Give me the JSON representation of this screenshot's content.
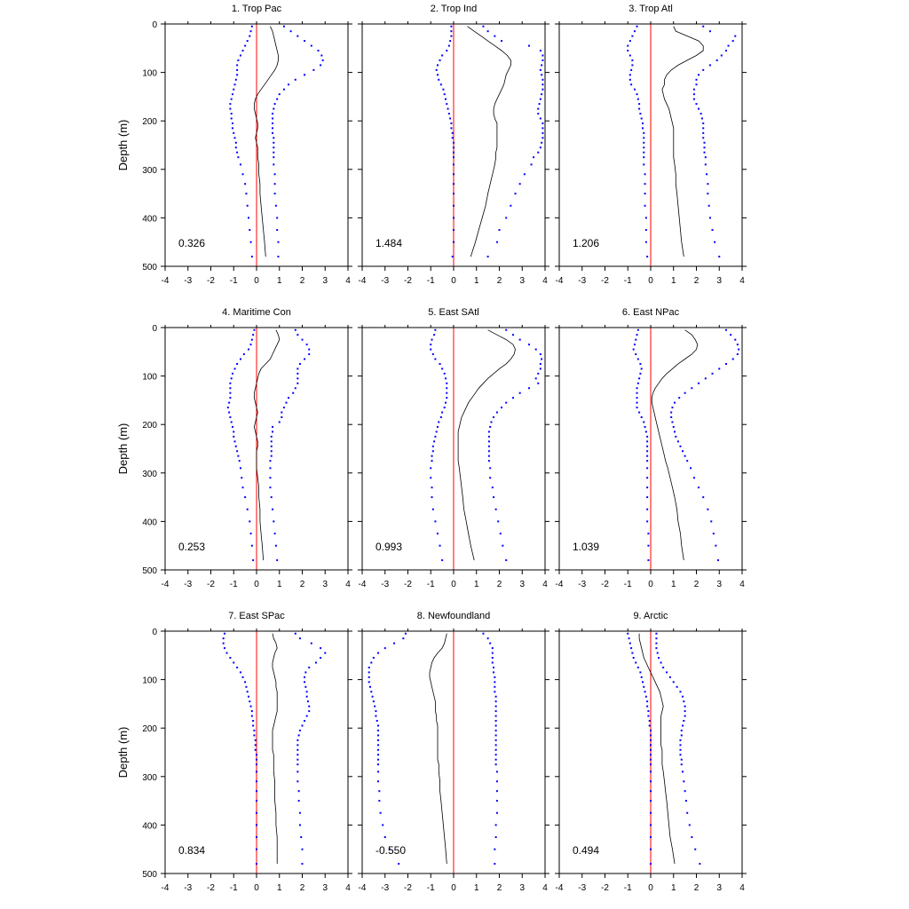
{
  "colors": {
    "mean_line": "#000000",
    "spread_dots": "#0000ff",
    "zero_line": "#ff0000",
    "axes": "#000000"
  },
  "chart_data": {
    "type": "line",
    "xlim": [
      -4,
      4
    ],
    "ylim": [
      0,
      500
    ],
    "y_inverted": true,
    "xticks": [
      "-4",
      "-3",
      "-2",
      "-1",
      "0",
      "1",
      "2",
      "3",
      "4"
    ],
    "yticks": [
      "0",
      "100",
      "200",
      "300",
      "400",
      "500"
    ],
    "ylabel": "Depth (m)",
    "grid": false,
    "depths": [
      5,
      15,
      25,
      35,
      45,
      55,
      65,
      75,
      85,
      95,
      105,
      115,
      125,
      135,
      145,
      155,
      165,
      175,
      185,
      195,
      205,
      215,
      225,
      235,
      245,
      255,
      265,
      275,
      290,
      310,
      330,
      350,
      375,
      400,
      425,
      450,
      480
    ],
    "panels": [
      {
        "title": "1. Trop Pac",
        "value": "0.326",
        "mean": [
          0.6,
          0.7,
          0.75,
          0.8,
          0.85,
          0.9,
          0.95,
          0.95,
          0.9,
          0.8,
          0.65,
          0.5,
          0.35,
          0.2,
          0.05,
          -0.05,
          -0.1,
          -0.1,
          -0.05,
          0.0,
          0.05,
          0.05,
          0.0,
          -0.05,
          0.0,
          0.05,
          0.05,
          0.05,
          0.1,
          0.1,
          0.15,
          0.15,
          0.2,
          0.25,
          0.3,
          0.35,
          0.4
        ],
        "lower": [
          -0.2,
          -0.25,
          -0.3,
          -0.4,
          -0.5,
          -0.6,
          -0.7,
          -0.8,
          -0.85,
          -0.85,
          -0.85,
          -0.9,
          -0.95,
          -1.0,
          -1.05,
          -1.1,
          -1.15,
          -1.15,
          -1.1,
          -1.1,
          -1.05,
          -1.05,
          -1.0,
          -0.95,
          -0.9,
          -0.9,
          -0.85,
          -0.8,
          -0.7,
          -0.6,
          -0.5,
          -0.45,
          -0.4,
          -0.35,
          -0.3,
          -0.25,
          -0.2
        ],
        "upper": [
          1.2,
          1.5,
          1.8,
          2.1,
          2.4,
          2.7,
          2.85,
          2.9,
          2.8,
          2.5,
          2.1,
          1.7,
          1.4,
          1.2,
          1.0,
          0.9,
          0.8,
          0.75,
          0.7,
          0.7,
          0.7,
          0.7,
          0.7,
          0.75,
          0.75,
          0.75,
          0.75,
          0.75,
          0.75,
          0.8,
          0.8,
          0.8,
          0.85,
          0.9,
          0.9,
          0.95,
          0.95
        ]
      },
      {
        "title": "2. Trop Ind",
        "value": "1.484",
        "mean": [
          0.6,
          0.9,
          1.2,
          1.5,
          1.8,
          2.1,
          2.35,
          2.5,
          2.5,
          2.4,
          2.3,
          2.25,
          2.2,
          2.1,
          2.0,
          1.9,
          1.8,
          1.75,
          1.75,
          1.8,
          1.9,
          1.9,
          1.9,
          1.9,
          1.9,
          1.9,
          1.85,
          1.85,
          1.8,
          1.7,
          1.6,
          1.5,
          1.4,
          1.25,
          1.1,
          0.95,
          0.75
        ],
        "lower": [
          -0.1,
          -0.1,
          -0.1,
          -0.15,
          -0.2,
          -0.3,
          -0.5,
          -0.6,
          -0.7,
          -0.75,
          -0.7,
          -0.65,
          -0.55,
          -0.45,
          -0.4,
          -0.35,
          -0.3,
          -0.25,
          -0.2,
          -0.15,
          -0.1,
          -0.1,
          -0.05,
          -0.05,
          0.0,
          0.0,
          0.0,
          0.0,
          0.0,
          0.0,
          0.0,
          0.0,
          0.0,
          0.0,
          0.0,
          0.0,
          -0.05
        ],
        "upper": [
          1.3,
          1.5,
          1.8,
          2.1,
          3.3,
          3.8,
          3.9,
          3.9,
          3.85,
          3.8,
          3.85,
          3.9,
          3.9,
          3.9,
          3.85,
          3.8,
          3.75,
          3.7,
          3.7,
          3.8,
          3.9,
          3.9,
          3.9,
          3.9,
          3.85,
          3.8,
          3.7,
          3.5,
          3.4,
          3.1,
          2.9,
          2.7,
          2.5,
          2.3,
          2.0,
          1.9,
          1.5
        ]
      },
      {
        "title": "3. Trop Atl",
        "value": "1.206",
        "mean": [
          1.0,
          1.1,
          1.6,
          2.1,
          2.3,
          2.3,
          2.0,
          1.6,
          1.2,
          0.9,
          0.7,
          0.6,
          0.6,
          0.5,
          0.55,
          0.6,
          0.7,
          0.8,
          0.85,
          0.9,
          0.95,
          1.0,
          1.0,
          1.0,
          1.0,
          1.0,
          1.0,
          1.0,
          1.05,
          1.1,
          1.1,
          1.15,
          1.2,
          1.25,
          1.3,
          1.35,
          1.45
        ],
        "lower": [
          -0.6,
          -0.7,
          -0.8,
          -0.9,
          -1.0,
          -1.0,
          -0.9,
          -0.8,
          -0.8,
          -0.85,
          -0.9,
          -0.9,
          -0.85,
          -0.7,
          -0.6,
          -0.55,
          -0.5,
          -0.5,
          -0.45,
          -0.4,
          -0.35,
          -0.35,
          -0.3,
          -0.3,
          -0.3,
          -0.3,
          -0.3,
          -0.3,
          -0.3,
          -0.25,
          -0.25,
          -0.25,
          -0.25,
          -0.2,
          -0.2,
          -0.2,
          -0.15
        ],
        "upper": [
          2.3,
          2.6,
          3.7,
          3.6,
          3.4,
          3.3,
          3.1,
          2.9,
          2.6,
          2.3,
          2.1,
          2.0,
          2.0,
          1.9,
          1.9,
          1.9,
          2.0,
          2.1,
          2.2,
          2.25,
          2.3,
          2.3,
          2.3,
          2.3,
          2.35,
          2.35,
          2.35,
          2.4,
          2.4,
          2.45,
          2.5,
          2.5,
          2.55,
          2.6,
          2.7,
          2.8,
          3.0
        ]
      },
      {
        "title": "4. Maritime Con",
        "value": "0.253",
        "mean": [
          0.85,
          0.95,
          1.0,
          0.9,
          0.8,
          0.7,
          0.6,
          0.4,
          0.2,
          0.1,
          0.05,
          0.0,
          -0.05,
          -0.1,
          -0.1,
          -0.05,
          0.0,
          0.05,
          0.0,
          -0.05,
          -0.1,
          -0.05,
          0.0,
          0.05,
          0.05,
          0.0,
          0.0,
          0.0,
          0.0,
          0.05,
          0.1,
          0.1,
          0.15,
          0.15,
          0.2,
          0.25,
          0.3
        ],
        "lower": [
          -0.1,
          -0.15,
          -0.2,
          -0.25,
          -0.35,
          -0.55,
          -0.7,
          -0.85,
          -0.95,
          -1.05,
          -1.1,
          -1.15,
          -1.15,
          -1.15,
          -1.15,
          -1.2,
          -1.25,
          -1.2,
          -1.15,
          -1.1,
          -1.05,
          -1.0,
          -1.0,
          -0.95,
          -0.9,
          -0.85,
          -0.8,
          -0.75,
          -0.7,
          -0.65,
          -0.6,
          -0.5,
          -0.4,
          -0.3,
          -0.25,
          -0.2,
          -0.15
        ],
        "upper": [
          1.7,
          1.8,
          2.0,
          2.2,
          2.3,
          2.3,
          2.1,
          1.9,
          1.8,
          1.8,
          1.8,
          1.8,
          1.7,
          1.6,
          1.4,
          1.3,
          1.2,
          1.1,
          1.1,
          1.0,
          0.7,
          0.7,
          0.65,
          0.65,
          0.65,
          0.65,
          0.65,
          0.6,
          0.6,
          0.6,
          0.6,
          0.65,
          0.7,
          0.75,
          0.8,
          0.85,
          0.9
        ]
      },
      {
        "title": "5. East SAtl",
        "value": "0.993",
        "mean": [
          1.5,
          1.9,
          2.3,
          2.6,
          2.7,
          2.65,
          2.5,
          2.3,
          2.0,
          1.75,
          1.5,
          1.3,
          1.1,
          0.95,
          0.8,
          0.65,
          0.55,
          0.45,
          0.35,
          0.3,
          0.25,
          0.2,
          0.2,
          0.2,
          0.2,
          0.2,
          0.2,
          0.2,
          0.25,
          0.3,
          0.35,
          0.4,
          0.45,
          0.55,
          0.65,
          0.75,
          0.9
        ],
        "lower": [
          -0.8,
          -0.85,
          -0.95,
          -1.0,
          -1.0,
          -0.9,
          -0.8,
          -0.6,
          -0.5,
          -0.4,
          -0.35,
          -0.3,
          -0.3,
          -0.3,
          -0.3,
          -0.35,
          -0.4,
          -0.5,
          -0.55,
          -0.65,
          -0.7,
          -0.75,
          -0.8,
          -0.85,
          -0.9,
          -0.9,
          -0.95,
          -0.95,
          -1.0,
          -1.0,
          -0.95,
          -0.95,
          -0.9,
          -0.8,
          -0.7,
          -0.6,
          -0.5
        ],
        "upper": [
          2.3,
          2.6,
          2.9,
          3.3,
          3.6,
          3.8,
          3.85,
          3.8,
          3.8,
          3.7,
          3.6,
          3.7,
          3.3,
          2.9,
          2.6,
          2.3,
          2.1,
          1.9,
          1.75,
          1.65,
          1.6,
          1.55,
          1.55,
          1.55,
          1.55,
          1.55,
          1.55,
          1.55,
          1.6,
          1.6,
          1.7,
          1.75,
          1.85,
          1.95,
          2.05,
          2.15,
          2.3
        ]
      },
      {
        "title": "6. East NPac",
        "value": "1.039",
        "mean": [
          1.5,
          1.8,
          1.95,
          2.05,
          2.0,
          1.8,
          1.5,
          1.2,
          0.95,
          0.7,
          0.5,
          0.35,
          0.2,
          0.1,
          0.05,
          0.05,
          0.1,
          0.15,
          0.2,
          0.25,
          0.3,
          0.35,
          0.4,
          0.45,
          0.5,
          0.55,
          0.6,
          0.65,
          0.75,
          0.85,
          0.95,
          1.05,
          1.15,
          1.2,
          1.3,
          1.35,
          1.45
        ],
        "lower": [
          -0.55,
          -0.6,
          -0.65,
          -0.7,
          -0.75,
          -0.65,
          -0.55,
          -0.45,
          -0.4,
          -0.45,
          -0.5,
          -0.55,
          -0.6,
          -0.6,
          -0.6,
          -0.6,
          -0.6,
          -0.5,
          -0.4,
          -0.3,
          -0.25,
          -0.2,
          -0.15,
          -0.15,
          -0.15,
          -0.15,
          -0.15,
          -0.15,
          -0.15,
          -0.15,
          -0.15,
          -0.15,
          -0.15,
          -0.15,
          -0.1,
          -0.1,
          -0.1
        ],
        "upper": [
          3.3,
          3.5,
          3.7,
          3.8,
          3.85,
          3.8,
          3.6,
          3.3,
          3.0,
          2.7,
          2.4,
          2.1,
          1.8,
          1.5,
          1.25,
          1.05,
          0.95,
          0.9,
          0.9,
          0.95,
          1.0,
          1.05,
          1.1,
          1.2,
          1.3,
          1.4,
          1.5,
          1.6,
          1.75,
          1.9,
          2.1,
          2.3,
          2.5,
          2.65,
          2.75,
          2.85,
          2.95
        ]
      },
      {
        "title": "7. East SPac",
        "value": "0.834",
        "mean": [
          0.7,
          0.75,
          0.85,
          0.9,
          0.8,
          0.75,
          0.7,
          0.7,
          0.75,
          0.8,
          0.85,
          0.85,
          0.9,
          0.9,
          0.9,
          0.9,
          0.9,
          0.85,
          0.8,
          0.75,
          0.7,
          0.7,
          0.7,
          0.7,
          0.7,
          0.75,
          0.75,
          0.75,
          0.75,
          0.8,
          0.8,
          0.8,
          0.85,
          0.85,
          0.9,
          0.9,
          0.9
        ],
        "lower": [
          -1.4,
          -1.45,
          -1.45,
          -1.4,
          -1.3,
          -1.15,
          -1.0,
          -0.85,
          -0.7,
          -0.6,
          -0.5,
          -0.45,
          -0.4,
          -0.35,
          -0.3,
          -0.25,
          -0.2,
          -0.2,
          -0.15,
          -0.15,
          -0.1,
          -0.1,
          -0.05,
          -0.05,
          -0.05,
          0.0,
          0.0,
          0.0,
          0.0,
          0.0,
          0.0,
          0.0,
          0.0,
          0.0,
          0.0,
          0.0,
          0.0
        ],
        "upper": [
          1.7,
          1.9,
          2.4,
          2.8,
          3.0,
          2.8,
          2.6,
          2.3,
          2.15,
          2.1,
          2.1,
          2.15,
          2.2,
          2.2,
          2.25,
          2.3,
          2.3,
          2.2,
          2.1,
          2.0,
          1.9,
          1.85,
          1.8,
          1.8,
          1.8,
          1.8,
          1.8,
          1.8,
          1.8,
          1.8,
          1.85,
          1.85,
          1.9,
          1.9,
          1.95,
          2.0,
          2.0
        ]
      },
      {
        "title": "8. Newfoundland",
        "value": "-0.550",
        "mean": [
          -0.3,
          -0.35,
          -0.4,
          -0.5,
          -0.7,
          -0.85,
          -0.95,
          -1.0,
          -1.05,
          -1.05,
          -1.0,
          -0.95,
          -0.9,
          -0.85,
          -0.8,
          -0.8,
          -0.8,
          -0.75,
          -0.75,
          -0.7,
          -0.7,
          -0.7,
          -0.7,
          -0.7,
          -0.7,
          -0.7,
          -0.7,
          -0.65,
          -0.65,
          -0.6,
          -0.6,
          -0.55,
          -0.5,
          -0.45,
          -0.4,
          -0.35,
          -0.3
        ],
        "lower": [
          -2.1,
          -2.2,
          -2.6,
          -3.0,
          -3.3,
          -3.5,
          -3.6,
          -3.7,
          -3.7,
          -3.7,
          -3.7,
          -3.65,
          -3.6,
          -3.55,
          -3.5,
          -3.45,
          -3.4,
          -3.4,
          -3.35,
          -3.3,
          -3.3,
          -3.3,
          -3.3,
          -3.3,
          -3.3,
          -3.3,
          -3.3,
          -3.3,
          -3.3,
          -3.3,
          -3.25,
          -3.25,
          -3.2,
          -3.1,
          -3.0,
          -2.8,
          -2.4
        ],
        "upper": [
          1.3,
          1.5,
          1.6,
          1.7,
          1.7,
          1.7,
          1.7,
          1.75,
          1.75,
          1.8,
          1.8,
          1.8,
          1.8,
          1.85,
          1.85,
          1.85,
          1.85,
          1.85,
          1.85,
          1.85,
          1.85,
          1.85,
          1.85,
          1.85,
          1.85,
          1.85,
          1.85,
          1.85,
          1.9,
          1.9,
          1.9,
          1.9,
          1.9,
          1.85,
          1.85,
          1.8,
          1.8
        ]
      },
      {
        "title": "9. Arctic",
        "value": "0.494",
        "mean": [
          -0.5,
          -0.5,
          -0.45,
          -0.4,
          -0.35,
          -0.3,
          -0.2,
          -0.1,
          0.0,
          0.1,
          0.2,
          0.3,
          0.4,
          0.45,
          0.5,
          0.55,
          0.5,
          0.45,
          0.45,
          0.45,
          0.45,
          0.45,
          0.45,
          0.45,
          0.5,
          0.5,
          0.5,
          0.5,
          0.55,
          0.6,
          0.65,
          0.7,
          0.75,
          0.8,
          0.85,
          0.95,
          1.05
        ],
        "lower": [
          -1.0,
          -0.95,
          -0.9,
          -0.85,
          -0.8,
          -0.75,
          -0.65,
          -0.55,
          -0.45,
          -0.4,
          -0.35,
          -0.3,
          -0.25,
          -0.2,
          -0.15,
          -0.15,
          -0.1,
          -0.1,
          -0.05,
          -0.05,
          0.0,
          0.0,
          0.0,
          0.0,
          0.0,
          0.0,
          0.0,
          0.0,
          0.0,
          0.0,
          0.0,
          0.0,
          0.0,
          0.0,
          0.0,
          0.0,
          0.0
        ],
        "upper": [
          0.25,
          0.25,
          0.25,
          0.25,
          0.3,
          0.35,
          0.45,
          0.55,
          0.7,
          0.85,
          1.0,
          1.15,
          1.3,
          1.4,
          1.45,
          1.5,
          1.5,
          1.5,
          1.45,
          1.4,
          1.35,
          1.35,
          1.3,
          1.3,
          1.3,
          1.3,
          1.35,
          1.35,
          1.4,
          1.45,
          1.5,
          1.55,
          1.6,
          1.7,
          1.8,
          1.95,
          2.15
        ]
      }
    ]
  }
}
